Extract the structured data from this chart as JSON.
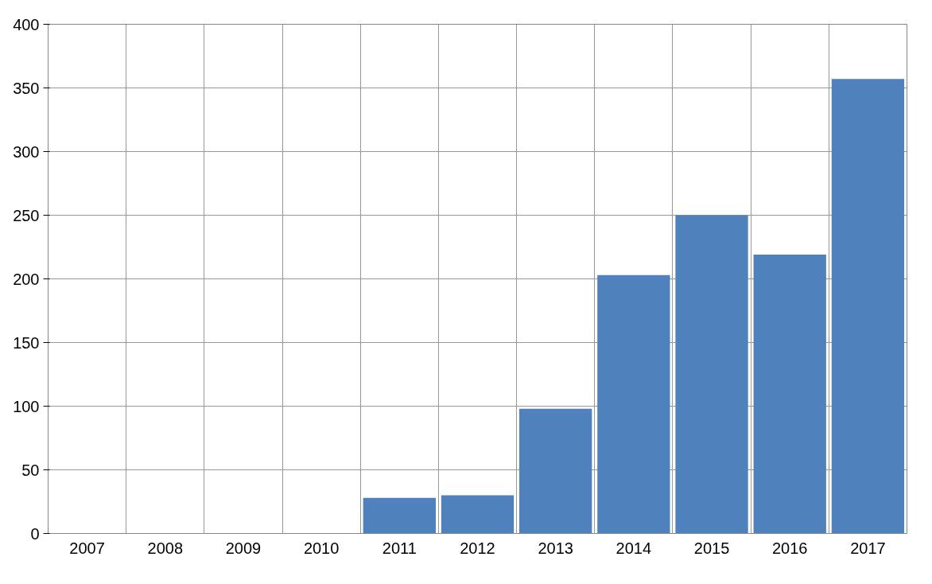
{
  "chart_data": {
    "type": "bar",
    "categories": [
      "2007",
      "2008",
      "2009",
      "2010",
      "2011",
      "2012",
      "2013",
      "2014",
      "2015",
      "2016",
      "2017"
    ],
    "values": [
      null,
      null,
      null,
      null,
      28,
      30,
      98,
      203,
      250,
      219,
      357
    ],
    "color": "#4f81bd",
    "ylim": [
      0,
      400
    ],
    "yticks": [
      0,
      50,
      100,
      150,
      200,
      250,
      300,
      350,
      400
    ],
    "grid": true
  }
}
